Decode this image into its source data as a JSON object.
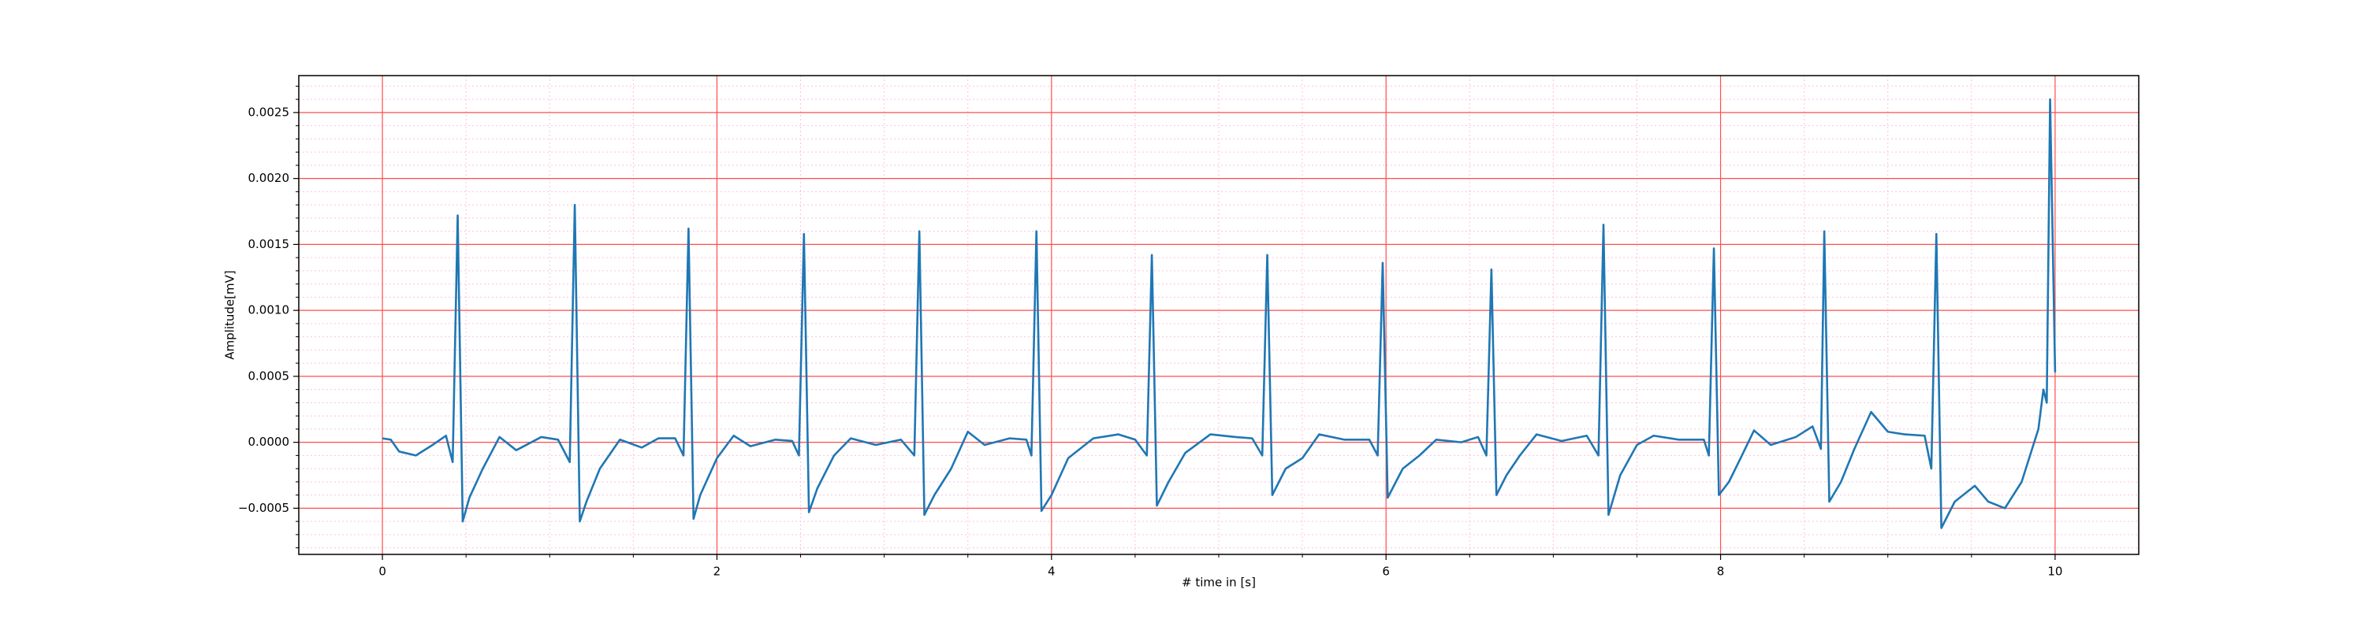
{
  "chart_data": {
    "type": "line",
    "xlabel": "# time in [s]",
    "ylabel": "Amplitude[mV]",
    "color": "#1f77b4",
    "grid": true,
    "major_grid_color": "#ff4d4d",
    "minor_grid_color": "#ffc0e0",
    "xlim": [
      -0.5,
      10.5
    ],
    "ylim": [
      -0.00085,
      0.00278
    ],
    "xticks": [
      0,
      2,
      4,
      6,
      8,
      10
    ],
    "yticks": [
      {
        "value": -0.0005,
        "label": "−0.0005"
      },
      {
        "value": 0,
        "label": "0.0000"
      },
      {
        "value": 0.0005,
        "label": "0.0005"
      },
      {
        "value": 0.001,
        "label": "0.0010"
      },
      {
        "value": 0.0015,
        "label": "0.0015"
      },
      {
        "value": 0.002,
        "label": "0.0020"
      },
      {
        "value": 0.0025,
        "label": "0.0025"
      }
    ],
    "xminor": [
      0.5,
      1,
      1.5,
      2.5,
      3,
      3.5,
      4.5,
      5,
      5.5,
      6.5,
      7,
      7.5,
      8.5,
      9,
      9.5
    ],
    "yminor": [
      -0.0008,
      -0.0007,
      -0.0006,
      -0.0004,
      -0.0003,
      -0.0002,
      -0.0001,
      0.0001,
      0.0002,
      0.0003,
      0.0004,
      0.0006,
      0.0007,
      0.0008,
      0.0009,
      0.0011,
      0.0012,
      0.0013,
      0.0014,
      0.0016,
      0.0017,
      0.0018,
      0.0019,
      0.0021,
      0.0022,
      0.0023,
      0.0024,
      0.0026,
      0.0027
    ],
    "x": [
      0,
      0.05,
      0.1,
      0.2,
      0.3,
      0.38,
      0.42,
      0.45,
      0.48,
      0.52,
      0.6,
      0.7,
      0.8,
      0.95,
      1.05,
      1.12,
      1.15,
      1.18,
      1.22,
      1.3,
      1.42,
      1.55,
      1.65,
      1.75,
      1.8,
      1.83,
      1.86,
      1.9,
      2.0,
      2.1,
      2.2,
      2.35,
      2.45,
      2.49,
      2.52,
      2.55,
      2.6,
      2.7,
      2.8,
      2.95,
      3.1,
      3.18,
      3.21,
      3.24,
      3.3,
      3.4,
      3.5,
      3.6,
      3.75,
      3.85,
      3.88,
      3.91,
      3.94,
      4.0,
      4.1,
      4.25,
      4.4,
      4.5,
      4.57,
      4.6,
      4.63,
      4.7,
      4.8,
      4.95,
      5.1,
      5.2,
      5.26,
      5.29,
      5.32,
      5.4,
      5.5,
      5.6,
      5.75,
      5.9,
      5.95,
      5.98,
      6.01,
      6.1,
      6.2,
      6.3,
      6.45,
      6.55,
      6.6,
      6.63,
      6.66,
      6.72,
      6.8,
      6.9,
      7.05,
      7.2,
      7.27,
      7.3,
      7.33,
      7.4,
      7.5,
      7.6,
      7.75,
      7.9,
      7.93,
      7.96,
      7.99,
      8.05,
      8.12,
      8.2,
      8.3,
      8.45,
      8.55,
      8.6,
      8.62,
      8.65,
      8.72,
      8.8,
      8.9,
      9.0,
      9.1,
      9.22,
      9.26,
      9.29,
      9.32,
      9.4,
      9.52,
      9.6,
      9.7,
      9.8,
      9.9,
      9.93,
      9.95,
      9.97,
      10.0
    ],
    "values": [
      3e-05,
      2e-05,
      -7e-05,
      -0.0001,
      -2e-05,
      5e-05,
      -0.00015,
      0.00172,
      -0.0006,
      -0.00042,
      -0.0002,
      4e-05,
      -6e-05,
      4e-05,
      2e-05,
      -0.00015,
      0.0018,
      -0.0006,
      -0.00045,
      -0.0002,
      2e-05,
      -4e-05,
      3e-05,
      3e-05,
      -0.0001,
      0.00162,
      -0.00058,
      -0.0004,
      -0.00012,
      5e-05,
      -3e-05,
      2e-05,
      1e-05,
      -0.0001,
      0.00158,
      -0.00053,
      -0.00035,
      -0.0001,
      3e-05,
      -2e-05,
      2e-05,
      -0.0001,
      0.0016,
      -0.00055,
      -0.0004,
      -0.0002,
      8e-05,
      -2e-05,
      3e-05,
      2e-05,
      -0.0001,
      0.0016,
      -0.00052,
      -0.0004,
      -0.00012,
      3e-05,
      6e-05,
      2e-05,
      -0.0001,
      0.00142,
      -0.00048,
      -0.0003,
      -8e-05,
      6e-05,
      4e-05,
      3e-05,
      -0.0001,
      0.00142,
      -0.0004,
      -0.0002,
      -0.00012,
      6e-05,
      2e-05,
      2e-05,
      -0.0001,
      0.00136,
      -0.00042,
      -0.0002,
      -0.0001,
      2e-05,
      0.0,
      4e-05,
      -0.0001,
      0.00131,
      -0.0004,
      -0.00025,
      -0.0001,
      6e-05,
      1e-05,
      5e-05,
      -0.0001,
      0.00165,
      -0.00055,
      -0.00025,
      -2e-05,
      5e-05,
      2e-05,
      2e-05,
      -0.0001,
      0.00147,
      -0.0004,
      -0.0003,
      -0.00012,
      9e-05,
      -2e-05,
      4e-05,
      0.00012,
      -5e-05,
      0.0016,
      -0.00045,
      -0.0003,
      -5e-05,
      0.00023,
      8e-05,
      6e-05,
      5e-05,
      -0.0002,
      0.00158,
      -0.00065,
      -0.00045,
      -0.00033,
      -0.00045,
      -0.0005,
      -0.0003,
      0.0001,
      0.0004,
      0.0003,
      0.0026,
      0.00053
    ]
  }
}
